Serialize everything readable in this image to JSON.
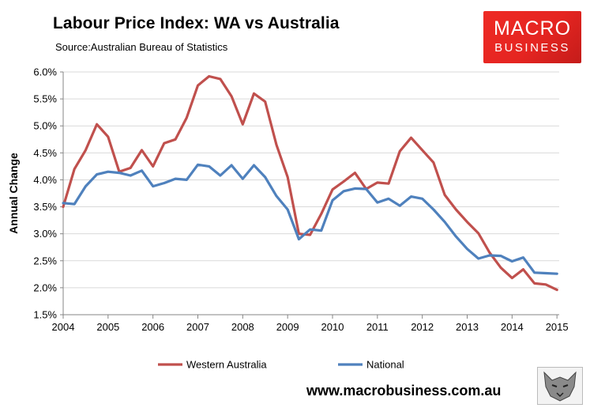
{
  "header": {
    "title": "Labour Price Index: WA vs Australia",
    "subtitle": "Source:Australian Bureau of Statistics"
  },
  "logo": {
    "line1": "MACRO",
    "line2": "BUSINESS"
  },
  "footer": {
    "website": "www.macrobusiness.com.au"
  },
  "colors": {
    "western_australia": "#c0504d",
    "national": "#4f81bd",
    "logo_red": "#e52521"
  },
  "chart_data": {
    "type": "line",
    "title": "Labour Price Index: WA vs Australia",
    "subtitle": "Source:Australian Bureau of Statistics",
    "xlabel": "",
    "ylabel": "Annual Change",
    "xlim": [
      2004.0,
      2015.05
    ],
    "ylim": [
      1.5,
      6.0
    ],
    "x_ticks": [
      "2004",
      "2005",
      "2006",
      "2007",
      "2008",
      "2009",
      "2010",
      "2011",
      "2012",
      "2013",
      "2014",
      "2015"
    ],
    "y_ticks": [
      "1.5%",
      "2.0%",
      "2.5%",
      "3.0%",
      "3.5%",
      "4.0%",
      "4.5%",
      "5.0%",
      "5.5%",
      "6.0%"
    ],
    "grid": "horizontal",
    "legend": "bottom",
    "series": [
      {
        "name": "Western Australia",
        "color": "#c0504d",
        "x": [
          2004.0,
          2004.25,
          2004.5,
          2004.75,
          2005.0,
          2005.25,
          2005.5,
          2005.75,
          2006.0,
          2006.25,
          2006.5,
          2006.75,
          2007.0,
          2007.25,
          2007.5,
          2007.75,
          2008.0,
          2008.25,
          2008.5,
          2008.75,
          2009.0,
          2009.25,
          2009.5,
          2009.75,
          2010.0,
          2010.25,
          2010.5,
          2010.75,
          2011.0,
          2011.25,
          2011.5,
          2011.75,
          2012.0,
          2012.25,
          2012.5,
          2012.75,
          2013.0,
          2013.25,
          2013.5,
          2013.75,
          2014.0,
          2014.25,
          2014.5,
          2014.75,
          2015.0
        ],
        "values": [
          3.5,
          4.2,
          4.55,
          5.03,
          4.8,
          4.15,
          4.22,
          4.55,
          4.25,
          4.68,
          4.75,
          5.15,
          5.75,
          5.92,
          5.87,
          5.55,
          5.03,
          5.6,
          5.45,
          4.65,
          4.05,
          3.0,
          2.98,
          3.37,
          3.82,
          3.97,
          4.13,
          3.83,
          3.95,
          3.93,
          4.53,
          4.78,
          4.55,
          4.32,
          3.72,
          3.45,
          3.22,
          3.01,
          2.65,
          2.37,
          2.18,
          2.34,
          2.08,
          2.06,
          1.96
        ]
      },
      {
        "name": "National",
        "color": "#4f81bd",
        "x": [
          2004.0,
          2004.25,
          2004.5,
          2004.75,
          2005.0,
          2005.25,
          2005.5,
          2005.75,
          2006.0,
          2006.25,
          2006.5,
          2006.75,
          2007.0,
          2007.25,
          2007.5,
          2007.75,
          2008.0,
          2008.25,
          2008.5,
          2008.75,
          2009.0,
          2009.25,
          2009.5,
          2009.75,
          2010.0,
          2010.25,
          2010.5,
          2010.75,
          2011.0,
          2011.25,
          2011.5,
          2011.75,
          2012.0,
          2012.25,
          2012.5,
          2012.75,
          2013.0,
          2013.25,
          2013.5,
          2013.75,
          2014.0,
          2014.25,
          2014.5,
          2014.75,
          2015.0
        ],
        "values": [
          3.57,
          3.55,
          3.88,
          4.1,
          4.15,
          4.13,
          4.08,
          4.17,
          3.88,
          3.94,
          4.02,
          4.0,
          4.28,
          4.25,
          4.08,
          4.27,
          4.02,
          4.27,
          4.05,
          3.7,
          3.45,
          2.9,
          3.08,
          3.06,
          3.62,
          3.79,
          3.84,
          3.83,
          3.58,
          3.65,
          3.52,
          3.69,
          3.65,
          3.45,
          3.22,
          2.95,
          2.72,
          2.54,
          2.6,
          2.59,
          2.49,
          2.56,
          2.28,
          2.27,
          2.26
        ]
      }
    ]
  }
}
